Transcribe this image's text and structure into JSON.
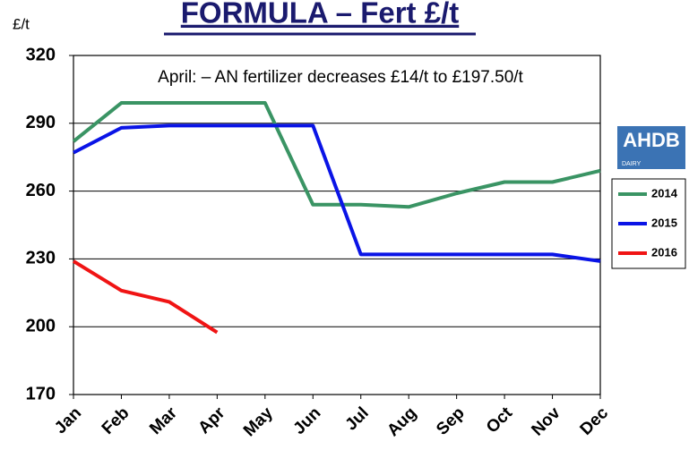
{
  "chart_data": {
    "type": "line",
    "title": "FORMULA – Fert £/t",
    "y_label": "£/t",
    "annotation": "April: – AN fertilizer decreases £14/t to £197.50/t",
    "categories": [
      "Jan",
      "Feb",
      "Mar",
      "Apr",
      "May",
      "Jun",
      "Jul",
      "Aug",
      "Sep",
      "Oct",
      "Nov",
      "Dec"
    ],
    "series": [
      {
        "name": "2014",
        "color": "#3a9464",
        "values": [
          282,
          299,
          299,
          299,
          299,
          254,
          254,
          253,
          259,
          264,
          264,
          269
        ]
      },
      {
        "name": "2015",
        "color": "#0a14e6",
        "values": [
          277,
          288,
          289,
          289,
          289,
          289,
          232,
          232,
          232,
          232,
          232,
          229
        ]
      },
      {
        "name": "2016",
        "color": "#f01414",
        "values": [
          229,
          216,
          211,
          197.5,
          null,
          null,
          null,
          null,
          null,
          null,
          null,
          null
        ]
      }
    ],
    "ylim": [
      170,
      320
    ],
    "yticks": [
      170,
      200,
      230,
      260,
      290,
      320
    ],
    "grid": true,
    "legend": "right",
    "logo": {
      "text": "AHDB",
      "subtext": "DAIRY"
    }
  }
}
